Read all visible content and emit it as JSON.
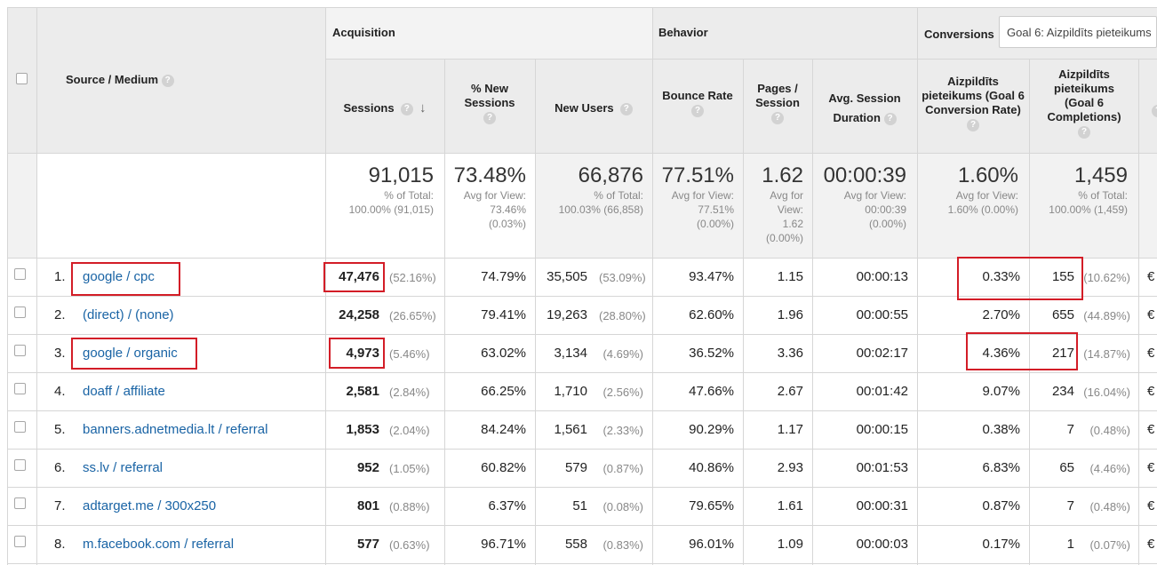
{
  "header": {
    "source_medium": "Source / Medium",
    "groups": {
      "acquisition": "Acquisition",
      "behavior": "Behavior",
      "conversions": "Conversions"
    },
    "goal_select": "Goal 6: Aizpildīts pieteikums",
    "columns": {
      "sessions": "Sessions",
      "new_sessions": "% New Sessions",
      "new_users": "New Users",
      "bounce_rate": "Bounce Rate",
      "pages_session": "Pages / Session",
      "avg_duration": "Avg. Session Duration",
      "conv_rate": "Aizpildīts pieteikums (Goal 6 Conversion Rate)",
      "completions": "Aizpildīts pieteikums (Goal 6 Completions)"
    },
    "help": "?",
    "sort_arrow": "↓"
  },
  "totals": {
    "sessions": {
      "value": "91,015",
      "l1": "% of Total:",
      "l2": "100.00% (91,015)"
    },
    "new_sessions": {
      "value": "73.48%",
      "l1": "Avg for View:",
      "l2": "73.46%",
      "l3": "(0.03%)"
    },
    "new_users": {
      "value": "66,876",
      "l1": "% of Total:",
      "l2": "100.03% (66,858)"
    },
    "bounce_rate": {
      "value": "77.51%",
      "l1": "Avg for View:",
      "l2": "77.51%",
      "l3": "(0.00%)"
    },
    "pages_session": {
      "value": "1.62",
      "l1": "Avg for",
      "l2": "View:",
      "l3": "1.62",
      "l4": "(0.00%)"
    },
    "avg_duration": {
      "value": "00:00:39",
      "l1": "Avg for View:",
      "l2": "00:00:39",
      "l3": "(0.00%)"
    },
    "conv_rate": {
      "value": "1.60%",
      "l1": "Avg for View:",
      "l2": "1.60% (0.00%)"
    },
    "completions": {
      "value": "1,459",
      "l1": "% of Total:",
      "l2": "100.00% (1,459)"
    }
  },
  "rows": [
    {
      "idx": "1.",
      "source": "google / cpc",
      "sessions": "47,476",
      "sessions_pct": "(52.16%)",
      "new_sessions": "74.79%",
      "new_users": "35,505",
      "new_users_pct": "(53.09%)",
      "bounce": "93.47%",
      "pages": "1.15",
      "duration": "00:00:13",
      "conv": "0.33%",
      "compl": "155",
      "compl_pct": "(10.62%)",
      "extra": "€"
    },
    {
      "idx": "2.",
      "source": "(direct) / (none)",
      "sessions": "24,258",
      "sessions_pct": "(26.65%)",
      "new_sessions": "79.41%",
      "new_users": "19,263",
      "new_users_pct": "(28.80%)",
      "bounce": "62.60%",
      "pages": "1.96",
      "duration": "00:00:55",
      "conv": "2.70%",
      "compl": "655",
      "compl_pct": "(44.89%)",
      "extra": "€"
    },
    {
      "idx": "3.",
      "source": "google / organic",
      "sessions": "4,973",
      "sessions_pct": "(5.46%)",
      "new_sessions": "63.02%",
      "new_users": "3,134",
      "new_users_pct": "(4.69%)",
      "bounce": "36.52%",
      "pages": "3.36",
      "duration": "00:02:17",
      "conv": "4.36%",
      "compl": "217",
      "compl_pct": "(14.87%)",
      "extra": "€"
    },
    {
      "idx": "4.",
      "source": "doaff / affiliate",
      "sessions": "2,581",
      "sessions_pct": "(2.84%)",
      "new_sessions": "66.25%",
      "new_users": "1,710",
      "new_users_pct": "(2.56%)",
      "bounce": "47.66%",
      "pages": "2.67",
      "duration": "00:01:42",
      "conv": "9.07%",
      "compl": "234",
      "compl_pct": "(16.04%)",
      "extra": "€"
    },
    {
      "idx": "5.",
      "source": "banners.adnetmedia.lt / referral",
      "sessions": "1,853",
      "sessions_pct": "(2.04%)",
      "new_sessions": "84.24%",
      "new_users": "1,561",
      "new_users_pct": "(2.33%)",
      "bounce": "90.29%",
      "pages": "1.17",
      "duration": "00:00:15",
      "conv": "0.38%",
      "compl": "7",
      "compl_pct": "(0.48%)",
      "extra": "€"
    },
    {
      "idx": "6.",
      "source": "ss.lv / referral",
      "sessions": "952",
      "sessions_pct": "(1.05%)",
      "new_sessions": "60.82%",
      "new_users": "579",
      "new_users_pct": "(0.87%)",
      "bounce": "40.86%",
      "pages": "2.93",
      "duration": "00:01:53",
      "conv": "6.83%",
      "compl": "65",
      "compl_pct": "(4.46%)",
      "extra": "€"
    },
    {
      "idx": "7.",
      "source": "adtarget.me / 300x250",
      "sessions": "801",
      "sessions_pct": "(0.88%)",
      "new_sessions": "6.37%",
      "new_users": "51",
      "new_users_pct": "(0.08%)",
      "bounce": "79.65%",
      "pages": "1.61",
      "duration": "00:00:31",
      "conv": "0.87%",
      "compl": "7",
      "compl_pct": "(0.48%)",
      "extra": "€"
    },
    {
      "idx": "8.",
      "source": "m.facebook.com / referral",
      "sessions": "577",
      "sessions_pct": "(0.63%)",
      "new_sessions": "96.71%",
      "new_users": "558",
      "new_users_pct": "(0.83%)",
      "bounce": "96.01%",
      "pages": "1.09",
      "duration": "00:00:03",
      "conv": "0.17%",
      "compl": "1",
      "compl_pct": "(0.07%)",
      "extra": "€"
    }
  ],
  "colors": {
    "link": "#1a64a5",
    "highlight": "#d31d27",
    "header_bg": "#ececec"
  }
}
